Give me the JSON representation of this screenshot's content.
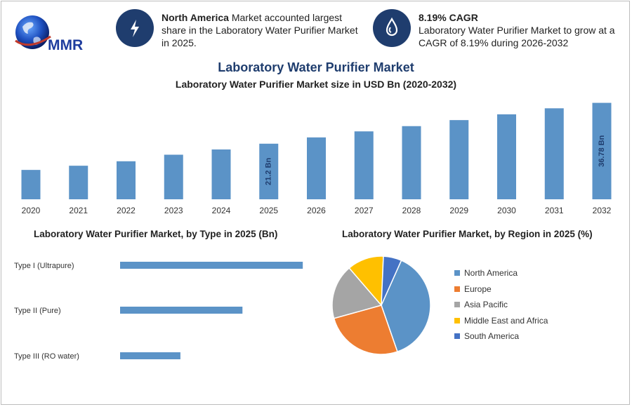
{
  "logo": {
    "text": "MMR"
  },
  "stats": [
    {
      "bold": "North America",
      "text": " Market accounted largest share in the Laboratory Water Purifier Market in 2025.",
      "icon": "lightning-icon"
    },
    {
      "bold": "8.19% CAGR",
      "text": "Laboratory Water Purifier Market to grow at a CAGR of 8.19% during 2026-2032",
      "icon": "water-drop-icon"
    }
  ],
  "title": "Laboratory Water Purifier Market",
  "chart_data": [
    {
      "type": "bar",
      "title": "Laboratory Water Purifier Market size in USD Bn (2020-2032)",
      "categories": [
        "2020",
        "2021",
        "2022",
        "2023",
        "2024",
        "2025",
        "2026",
        "2027",
        "2028",
        "2029",
        "2030",
        "2031",
        "2032"
      ],
      "values": [
        11.2,
        12.8,
        14.5,
        17.0,
        19.0,
        21.2,
        23.6,
        25.9,
        27.9,
        30.2,
        32.4,
        34.7,
        36.78
      ],
      "data_labels": {
        "5": "21.2 Bn",
        "12": "36.78 Bn"
      },
      "color": "#5b93c7",
      "ylim": [
        0,
        38
      ]
    },
    {
      "type": "bar",
      "orientation": "horizontal",
      "title": "Laboratory Water Purifier Market, by Type in 2025 (Bn)",
      "categories": [
        "Type I (Ultrapure)",
        "Type II (Pure)",
        "Type III (RO water)"
      ],
      "values": [
        10.6,
        7.1,
        3.5
      ],
      "color": "#5b93c7",
      "xlim": [
        0,
        11
      ]
    },
    {
      "type": "pie",
      "title": "Laboratory Water Purifier Market, by Region in 2025 (%)",
      "categories": [
        "North America",
        "Europe",
        "Asia Pacific",
        "Middle East and Africa",
        "South America"
      ],
      "values": [
        38,
        26,
        18,
        12,
        6
      ],
      "colors": [
        "#5b93c7",
        "#ed7d31",
        "#a5a5a5",
        "#ffc000",
        "#4472c4"
      ],
      "legend": "right"
    }
  ]
}
